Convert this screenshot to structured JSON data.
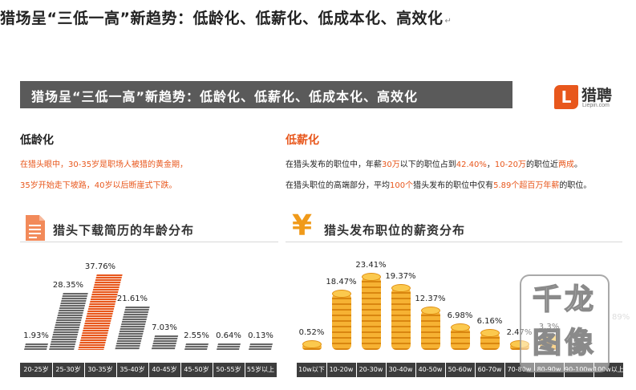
{
  "doc": {
    "heading": "猎场呈“三低一高”新趋势：低龄化、低薪化、低成本化、高效化",
    "return_mark": "↵"
  },
  "banner": {
    "title": "猎场呈“三低一高”新趋势：低龄化、低薪化、低成本化、高效化"
  },
  "logo": {
    "name": "猎聘",
    "sub": "Liepin.com",
    "mark": "L"
  },
  "left": {
    "label": "低龄化",
    "line1": "在猎头眼中，30-35岁是职场人被猎的黄金期，",
    "line2": "35岁开始走下坡路，40岁以后断崖式下跌。",
    "chart_title": "猎头下载简历的年龄分布"
  },
  "right": {
    "label": "低薪化",
    "line1_a": "在猎头发布的职位中，年薪",
    "line1_b": "30万",
    "line1_c": "以下的职位占到",
    "line1_d": "42.40%",
    "line1_e": "，",
    "line1_f": "10-20万",
    "line1_g": "的职位近",
    "line1_h": "两成",
    "line1_i": "。",
    "line2_a": "在猎头职位的高端部分，平均",
    "line2_b": "100个",
    "line2_c": "猎头发布的职位中仅有",
    "line2_d": "5.89个超百万年薪",
    "line2_e": "的职位。",
    "chart_title": "猎头发布职位的薪资分布"
  },
  "watermark": {
    "line1": "千龙",
    "line2": "图像",
    "tail_value": "89%"
  },
  "colors": {
    "accent": "#e8571c",
    "banner": "#5a5a5a",
    "coin": "#f09a1a",
    "paper": "#666666"
  },
  "icons": {
    "left_chart": "resume-document-icon",
    "right_chart": "yen-icon"
  },
  "chart_data": [
    {
      "type": "bar",
      "title": "猎头下载简历的年龄分布",
      "categories": [
        "20-25岁",
        "25-30岁",
        "30-35岁",
        "35-40岁",
        "40-45岁",
        "45-50岁",
        "50-55岁",
        "55岁以上"
      ],
      "values": [
        1.93,
        28.35,
        37.76,
        21.61,
        7.03,
        2.55,
        0.64,
        0.13
      ],
      "labels": [
        "1.93%",
        "28.35%",
        "37.76%",
        "21.61%",
        "7.03%",
        "2.55%",
        "0.64%",
        "0.13%"
      ],
      "highlight_index": 2,
      "unit": "%"
    },
    {
      "type": "bar",
      "title": "猎头发布职位的薪资分布",
      "categories": [
        "10w以下",
        "10-20w",
        "20-30w",
        "30-40w",
        "40-50w",
        "50-60w",
        "60-70w",
        "70-80w",
        "80-90w",
        "90-100w",
        "100w以上"
      ],
      "values": [
        0.52,
        18.47,
        23.41,
        19.37,
        12.37,
        6.98,
        6.16,
        2.47,
        3.3,
        null,
        null
      ],
      "labels": [
        "0.52%",
        "18.47%",
        "23.41%",
        "19.37%",
        "12.37%",
        "6.98%",
        "6.16%",
        "2.47%",
        "3.3%",
        "",
        ""
      ],
      "unit": "%"
    }
  ]
}
